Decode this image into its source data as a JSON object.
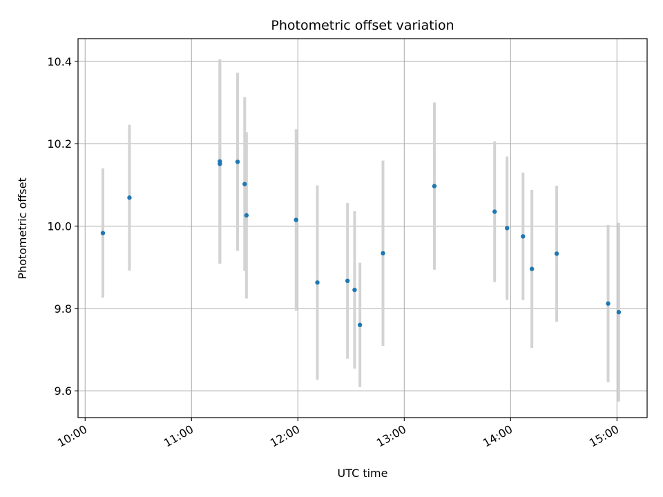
{
  "chart_data": {
    "type": "scatter",
    "title": "Photometric offset variation",
    "xlabel": "UTC time",
    "ylabel": "Photometric offset",
    "x_tick_labels": [
      "10:00",
      "11:00",
      "12:00",
      "13:00",
      "14:00",
      "15:00"
    ],
    "y_tick_labels": [
      "9.6",
      "9.8",
      "10.0",
      "10.2",
      "10.4"
    ],
    "y_ticks": [
      9.6,
      9.8,
      10.0,
      10.2,
      10.4
    ],
    "xlim": [
      "09:56",
      "15:17"
    ],
    "ylim": [
      9.535,
      10.455
    ],
    "grid": true,
    "marker_color": "#1f77b4",
    "errorbar_color": "#d3d3d3",
    "points": [
      {
        "x": "10:10",
        "y": 9.983,
        "err": 0.157
      },
      {
        "x": "10:25",
        "y": 10.069,
        "err": 0.177
      },
      {
        "x": "11:16",
        "y": 10.157,
        "err": 0.248
      },
      {
        "x": "11:16",
        "y": 10.151,
        "err": 0.242
      },
      {
        "x": "11:26",
        "y": 10.156,
        "err": 0.216
      },
      {
        "x": "11:30",
        "y": 10.102,
        "err": 0.211
      },
      {
        "x": "11:31",
        "y": 10.026,
        "err": 0.202
      },
      {
        "x": "11:59",
        "y": 10.015,
        "err": 0.22
      },
      {
        "x": "12:11",
        "y": 9.863,
        "err": 0.236
      },
      {
        "x": "12:28",
        "y": 9.867,
        "err": 0.189
      },
      {
        "x": "12:32",
        "y": 9.845,
        "err": 0.191
      },
      {
        "x": "12:35",
        "y": 9.76,
        "err": 0.151
      },
      {
        "x": "12:48",
        "y": 9.934,
        "err": 0.225
      },
      {
        "x": "13:17",
        "y": 10.097,
        "err": 0.203
      },
      {
        "x": "13:51",
        "y": 10.035,
        "err": 0.171
      },
      {
        "x": "13:58",
        "y": 9.995,
        "err": 0.174
      },
      {
        "x": "14:07",
        "y": 9.975,
        "err": 0.155
      },
      {
        "x": "14:12",
        "y": 9.896,
        "err": 0.192
      },
      {
        "x": "14:26",
        "y": 9.933,
        "err": 0.165
      },
      {
        "x": "14:55",
        "y": 9.812,
        "err": 0.191
      },
      {
        "x": "15:01",
        "y": 9.791,
        "err": 0.217
      }
    ]
  }
}
